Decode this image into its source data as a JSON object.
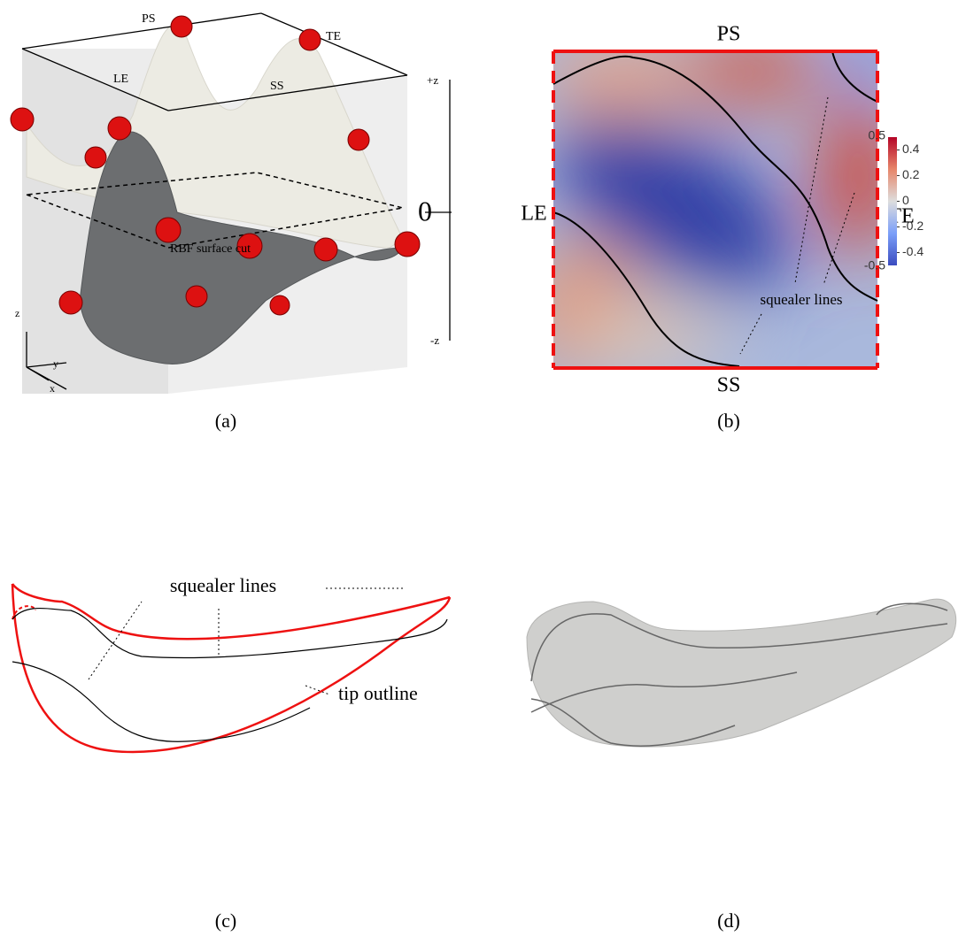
{
  "panels": {
    "a": {
      "caption": "(a)",
      "labels": {
        "ps": "PS",
        "te": "TE",
        "le": "LE",
        "ss": "SS",
        "zplus": "+z",
        "zero": "0",
        "zminus": "-z",
        "cut": "RBF surface cut",
        "axis_z": "z",
        "axis_y": "y",
        "axis_x": "x"
      }
    },
    "b": {
      "caption": "(b)",
      "labels": {
        "ps": "PS",
        "ss": "SS",
        "le": "LE",
        "te": "TE",
        "squealer": "squealer lines"
      },
      "colorbar": {
        "clim": [
          -0.5,
          0.5
        ],
        "ticks": [
          0.4,
          0.2,
          0,
          -0.2,
          -0.4
        ]
      }
    },
    "c": {
      "caption": "(c)",
      "labels": {
        "squealer": "squealer lines",
        "outline": "tip outline"
      }
    },
    "d": {
      "caption": "(d)"
    }
  }
}
